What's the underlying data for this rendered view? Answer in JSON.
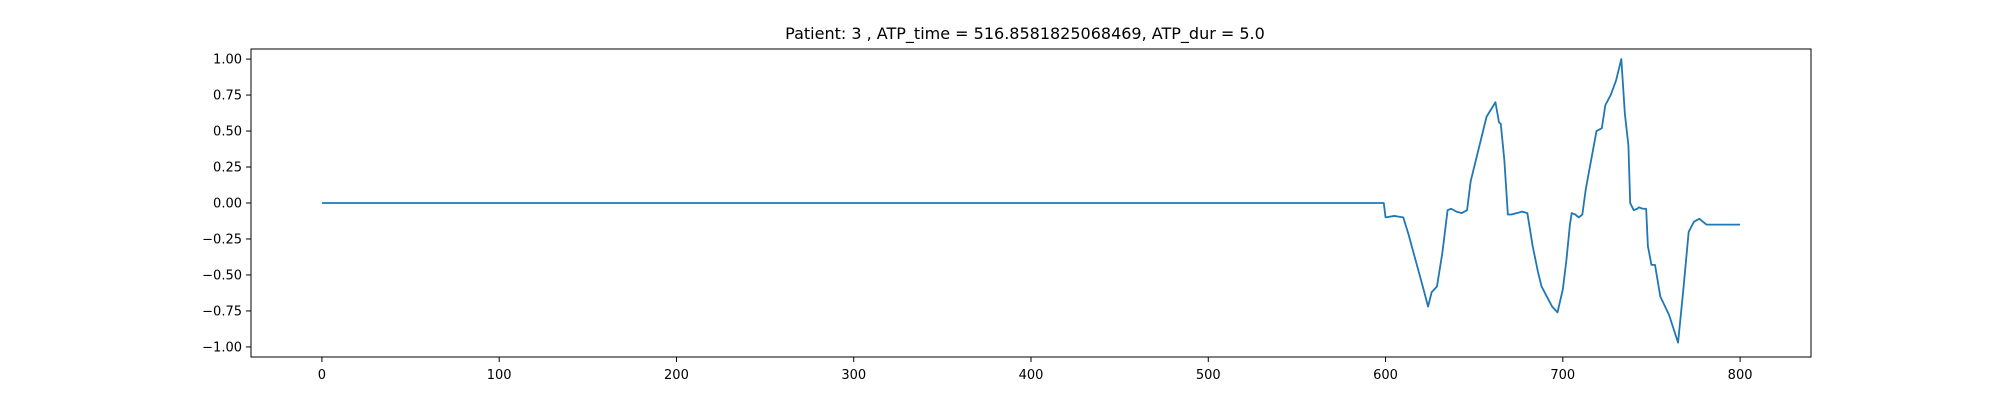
{
  "chart_data": {
    "type": "line",
    "title": "Patient: 3 , ATP_time = 516.8581825068469, ATP_dur = 5.0",
    "xlabel": "",
    "ylabel": "",
    "xlim": [
      -40,
      840
    ],
    "ylim": [
      -1.07,
      1.07
    ],
    "xticks": [
      0,
      100,
      200,
      300,
      400,
      500,
      600,
      700,
      800
    ],
    "xtick_labels": [
      "0",
      "100",
      "200",
      "300",
      "400",
      "500",
      "600",
      "700",
      "800"
    ],
    "yticks": [
      1.0,
      0.75,
      0.5,
      0.25,
      0.0,
      -0.25,
      -0.5,
      -0.75,
      -1.0
    ],
    "ytick_labels": [
      "1.00",
      "0.75",
      "0.50",
      "0.25",
      "0.00",
      "−0.25",
      "−0.50",
      "−0.75",
      "−1.00"
    ],
    "grid": false,
    "line_color": "#1f77b4",
    "series": [
      {
        "x": [
          0,
          100,
          200,
          300,
          400,
          500,
          598,
          599,
          600,
          605,
          610,
          613,
          617,
          621,
          624,
          626,
          629,
          632,
          635,
          637,
          640,
          643,
          646,
          648,
          651,
          654,
          657,
          660,
          662,
          664,
          665,
          667,
          669,
          671,
          674,
          677,
          680,
          683,
          686,
          688,
          691,
          694,
          697,
          700,
          702,
          704,
          705,
          707,
          709,
          711,
          713,
          716,
          719,
          722,
          724,
          727,
          730,
          733,
          735,
          737,
          738,
          740,
          742,
          743,
          745,
          747,
          748,
          750,
          752,
          755,
          760,
          765,
          768,
          771,
          774,
          777,
          779,
          781,
          783,
          785,
          787,
          789,
          791,
          793,
          796,
          800
        ],
        "y": [
          0,
          0,
          0,
          0,
          0,
          0,
          0,
          0,
          -0.1,
          -0.09,
          -0.1,
          -0.22,
          -0.4,
          -0.58,
          -0.72,
          -0.62,
          -0.58,
          -0.35,
          -0.05,
          -0.04,
          -0.06,
          -0.07,
          -0.05,
          0.15,
          0.3,
          0.45,
          0.6,
          0.66,
          0.7,
          0.56,
          0.55,
          0.3,
          -0.08,
          -0.08,
          -0.07,
          -0.06,
          -0.07,
          -0.3,
          -0.48,
          -0.58,
          -0.65,
          -0.72,
          -0.76,
          -0.6,
          -0.4,
          -0.15,
          -0.07,
          -0.08,
          -0.1,
          -0.08,
          0.1,
          0.3,
          0.5,
          0.52,
          0.68,
          0.75,
          0.85,
          1.0,
          0.62,
          0.4,
          0.0,
          -0.05,
          -0.04,
          -0.03,
          -0.04,
          -0.04,
          -0.3,
          -0.43,
          -0.43,
          -0.65,
          -0.78,
          -0.97,
          -0.6,
          -0.2,
          -0.13,
          -0.11,
          -0.13,
          -0.15,
          -0.15,
          -0.15,
          -0.15,
          -0.15,
          -0.15,
          -0.15,
          -0.15,
          -0.15
        ]
      }
    ]
  }
}
